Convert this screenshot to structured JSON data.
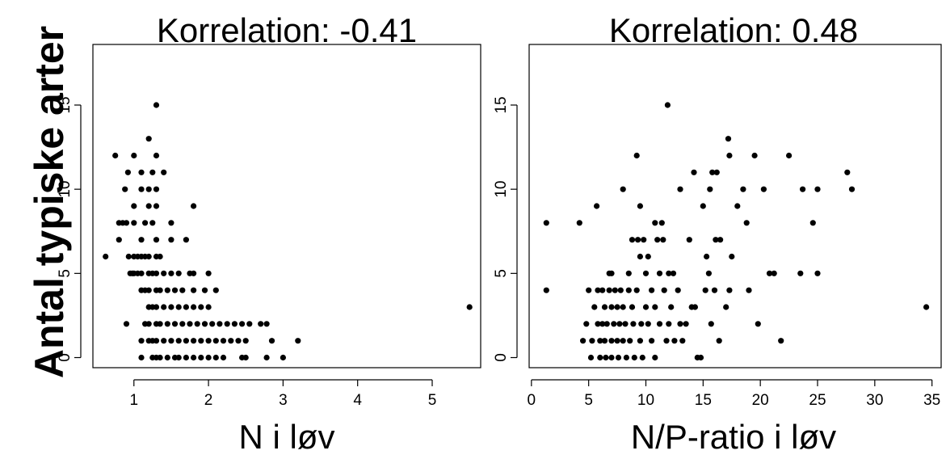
{
  "figure": {
    "ylabel": "Antal typiske arter"
  },
  "chart_data": [
    {
      "type": "scatter",
      "title": "Korrelation: -0.41",
      "xlabel": "N i løv",
      "ylabel": "Antal typiske arter",
      "xlim": [
        0.45,
        5.65
      ],
      "ylim": [
        -0.6,
        18.6
      ],
      "xticks": [
        1,
        2,
        3,
        4,
        5
      ],
      "yticks": [
        0,
        5,
        10,
        15
      ],
      "grid": false,
      "legend": "none",
      "points": [
        [
          0.62,
          6
        ],
        [
          0.75,
          12
        ],
        [
          0.8,
          7
        ],
        [
          0.8,
          8
        ],
        [
          0.85,
          8
        ],
        [
          0.88,
          10
        ],
        [
          0.9,
          2
        ],
        [
          0.9,
          8
        ],
        [
          0.92,
          11
        ],
        [
          0.93,
          6
        ],
        [
          0.95,
          5
        ],
        [
          0.98,
          5
        ],
        [
          1.0,
          12
        ],
        [
          1.0,
          9
        ],
        [
          1.0,
          8
        ],
        [
          1.0,
          6
        ],
        [
          1.0,
          5
        ],
        [
          1.05,
          6
        ],
        [
          1.05,
          5
        ],
        [
          1.1,
          11
        ],
        [
          1.1,
          10
        ],
        [
          1.1,
          7
        ],
        [
          1.1,
          6
        ],
        [
          1.1,
          5
        ],
        [
          1.1,
          4
        ],
        [
          1.1,
          1
        ],
        [
          1.1,
          0
        ],
        [
          1.15,
          8
        ],
        [
          1.15,
          6
        ],
        [
          1.15,
          4
        ],
        [
          1.15,
          2
        ],
        [
          1.2,
          13
        ],
        [
          1.2,
          10
        ],
        [
          1.2,
          9
        ],
        [
          1.2,
          6
        ],
        [
          1.2,
          5
        ],
        [
          1.2,
          4
        ],
        [
          1.2,
          3
        ],
        [
          1.2,
          2
        ],
        [
          1.2,
          1
        ],
        [
          1.25,
          11
        ],
        [
          1.25,
          8
        ],
        [
          1.25,
          5
        ],
        [
          1.25,
          3
        ],
        [
          1.25,
          1
        ],
        [
          1.25,
          0
        ],
        [
          1.3,
          15
        ],
        [
          1.3,
          12
        ],
        [
          1.3,
          10
        ],
        [
          1.3,
          9
        ],
        [
          1.3,
          7
        ],
        [
          1.3,
          6
        ],
        [
          1.3,
          5
        ],
        [
          1.3,
          4
        ],
        [
          1.3,
          3
        ],
        [
          1.3,
          2
        ],
        [
          1.3,
          1
        ],
        [
          1.3,
          0
        ],
        [
          1.35,
          6
        ],
        [
          1.35,
          4
        ],
        [
          1.35,
          2
        ],
        [
          1.35,
          0
        ],
        [
          1.4,
          11
        ],
        [
          1.4,
          5
        ],
        [
          1.4,
          3
        ],
        [
          1.4,
          1
        ],
        [
          1.45,
          4
        ],
        [
          1.45,
          2
        ],
        [
          1.45,
          0
        ],
        [
          1.5,
          8
        ],
        [
          1.5,
          7
        ],
        [
          1.5,
          5
        ],
        [
          1.5,
          3
        ],
        [
          1.5,
          1
        ],
        [
          1.55,
          4
        ],
        [
          1.55,
          2
        ],
        [
          1.55,
          0
        ],
        [
          1.6,
          5
        ],
        [
          1.6,
          3
        ],
        [
          1.6,
          1
        ],
        [
          1.6,
          0
        ],
        [
          1.65,
          4
        ],
        [
          1.65,
          2
        ],
        [
          1.7,
          7
        ],
        [
          1.7,
          3
        ],
        [
          1.7,
          1
        ],
        [
          1.7,
          0
        ],
        [
          1.75,
          5
        ],
        [
          1.75,
          2
        ],
        [
          1.8,
          9
        ],
        [
          1.8,
          5
        ],
        [
          1.8,
          4
        ],
        [
          1.8,
          3
        ],
        [
          1.8,
          1
        ],
        [
          1.8,
          0
        ],
        [
          1.85,
          2
        ],
        [
          1.9,
          3
        ],
        [
          1.9,
          1
        ],
        [
          1.9,
          0
        ],
        [
          1.95,
          4
        ],
        [
          1.95,
          2
        ],
        [
          2.0,
          5
        ],
        [
          2.0,
          3
        ],
        [
          2.0,
          1
        ],
        [
          2.0,
          0
        ],
        [
          2.05,
          2
        ],
        [
          2.1,
          4
        ],
        [
          2.1,
          1
        ],
        [
          2.1,
          0
        ],
        [
          2.15,
          2
        ],
        [
          2.2,
          1
        ],
        [
          2.2,
          0
        ],
        [
          2.25,
          2
        ],
        [
          2.3,
          1
        ],
        [
          2.35,
          2
        ],
        [
          2.4,
          1
        ],
        [
          2.45,
          2
        ],
        [
          2.45,
          0
        ],
        [
          2.5,
          1
        ],
        [
          2.5,
          0
        ],
        [
          2.55,
          2
        ],
        [
          2.7,
          2
        ],
        [
          2.78,
          2
        ],
        [
          2.78,
          0
        ],
        [
          2.85,
          1
        ],
        [
          3.0,
          0
        ],
        [
          3.2,
          1
        ],
        [
          5.5,
          3
        ]
      ]
    },
    {
      "type": "scatter",
      "title": "Korrelation: 0.48",
      "xlabel": "N/P-ratio i løv",
      "ylabel": "",
      "xlim": [
        -0.2,
        35.8
      ],
      "ylim": [
        -0.6,
        18.6
      ],
      "xticks": [
        0,
        5,
        10,
        15,
        20,
        25,
        30,
        35
      ],
      "yticks": [
        0,
        5,
        10,
        15
      ],
      "grid": false,
      "legend": "none",
      "points": [
        [
          1.3,
          8
        ],
        [
          1.3,
          4
        ],
        [
          4.2,
          8
        ],
        [
          4.5,
          1
        ],
        [
          4.8,
          2
        ],
        [
          5.0,
          4
        ],
        [
          5.2,
          0
        ],
        [
          5.3,
          1
        ],
        [
          5.5,
          3
        ],
        [
          5.7,
          9
        ],
        [
          5.8,
          4
        ],
        [
          5.8,
          2
        ],
        [
          6.0,
          1
        ],
        [
          6.0,
          0
        ],
        [
          6.2,
          4
        ],
        [
          6.2,
          2
        ],
        [
          6.4,
          3
        ],
        [
          6.4,
          1
        ],
        [
          6.5,
          0
        ],
        [
          6.6,
          2
        ],
        [
          6.8,
          5
        ],
        [
          6.8,
          4
        ],
        [
          7.0,
          5
        ],
        [
          7.0,
          3
        ],
        [
          7.0,
          1
        ],
        [
          7.0,
          0
        ],
        [
          7.2,
          2
        ],
        [
          7.3,
          4
        ],
        [
          7.5,
          3
        ],
        [
          7.5,
          1
        ],
        [
          7.6,
          0
        ],
        [
          7.7,
          2
        ],
        [
          7.8,
          4
        ],
        [
          8.0,
          10
        ],
        [
          8.0,
          3
        ],
        [
          8.0,
          1
        ],
        [
          8.2,
          2
        ],
        [
          8.3,
          0
        ],
        [
          8.5,
          5
        ],
        [
          8.5,
          4
        ],
        [
          8.6,
          1
        ],
        [
          8.8,
          7
        ],
        [
          8.8,
          3
        ],
        [
          8.9,
          2
        ],
        [
          9.0,
          0
        ],
        [
          9.2,
          12
        ],
        [
          9.2,
          4
        ],
        [
          9.3,
          7
        ],
        [
          9.5,
          9
        ],
        [
          9.5,
          6
        ],
        [
          9.5,
          1
        ],
        [
          9.6,
          2
        ],
        [
          9.7,
          0
        ],
        [
          9.8,
          7
        ],
        [
          10.0,
          5
        ],
        [
          10.0,
          3
        ],
        [
          10.2,
          6
        ],
        [
          10.2,
          2
        ],
        [
          10.5,
          4
        ],
        [
          10.5,
          1
        ],
        [
          10.8,
          8
        ],
        [
          10.8,
          3
        ],
        [
          10.8,
          0
        ],
        [
          11.0,
          7
        ],
        [
          11.2,
          5
        ],
        [
          11.2,
          2
        ],
        [
          11.4,
          8
        ],
        [
          11.5,
          7
        ],
        [
          11.6,
          4
        ],
        [
          11.8,
          1
        ],
        [
          11.9,
          15
        ],
        [
          12.0,
          5
        ],
        [
          12.0,
          2
        ],
        [
          12.2,
          3
        ],
        [
          12.4,
          5
        ],
        [
          12.5,
          1
        ],
        [
          12.8,
          4
        ],
        [
          13.0,
          10
        ],
        [
          13.0,
          2
        ],
        [
          13.2,
          1
        ],
        [
          13.5,
          2
        ],
        [
          13.8,
          7
        ],
        [
          14.0,
          3
        ],
        [
          14.2,
          11
        ],
        [
          14.3,
          3
        ],
        [
          14.5,
          0
        ],
        [
          14.8,
          0
        ],
        [
          15.0,
          9
        ],
        [
          15.2,
          4
        ],
        [
          15.3,
          6
        ],
        [
          15.5,
          5
        ],
        [
          15.6,
          10
        ],
        [
          15.7,
          2
        ],
        [
          15.8,
          11
        ],
        [
          16.0,
          4
        ],
        [
          16.1,
          7
        ],
        [
          16.2,
          11
        ],
        [
          16.4,
          1
        ],
        [
          16.5,
          7
        ],
        [
          17.0,
          3
        ],
        [
          17.2,
          13
        ],
        [
          17.3,
          12
        ],
        [
          17.3,
          4
        ],
        [
          17.5,
          6
        ],
        [
          18.0,
          9
        ],
        [
          18.5,
          10
        ],
        [
          18.8,
          8
        ],
        [
          19.0,
          4
        ],
        [
          19.5,
          12
        ],
        [
          19.8,
          2
        ],
        [
          20.3,
          10
        ],
        [
          20.8,
          5
        ],
        [
          21.2,
          5
        ],
        [
          21.8,
          1
        ],
        [
          22.5,
          12
        ],
        [
          23.5,
          5
        ],
        [
          23.7,
          10
        ],
        [
          24.6,
          8
        ],
        [
          25.0,
          10
        ],
        [
          25.0,
          5
        ],
        [
          27.6,
          11
        ],
        [
          28.0,
          10
        ],
        [
          34.5,
          3
        ]
      ]
    }
  ]
}
